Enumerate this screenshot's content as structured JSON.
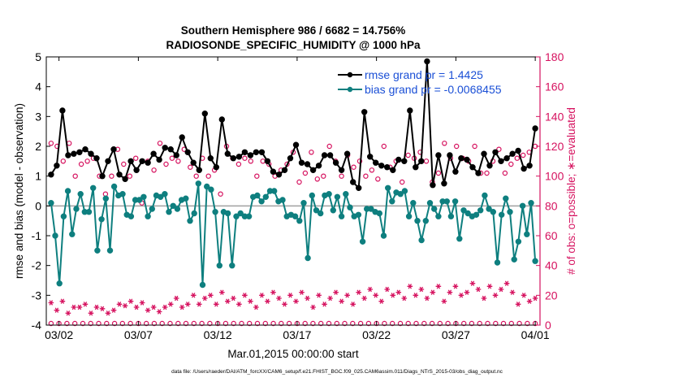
{
  "chart_data": {
    "type": "line",
    "title": "Southern Hemisphere 986 / 6682 = 14.756%",
    "subtitle": "RADIOSONDE_SPECIFIC_HUMIDITY @ 1000 hPa",
    "xlabel": "Mar.01,2015 00:00:00 start",
    "ylabel": "rmse and bias (model - observation)",
    "y2label": "# of obs: o=possible; ∗=evaluated",
    "footer": "data file: /Users/raeder/DAI/ATM_forcXX/CAM6_setup/f.e21.FHIST_BGC.f09_025.CAM6assim.011/Diags_NTrS_2015-03/obs_diag_output.nc",
    "xlim": [
      0.2,
      31.3
    ],
    "ylim": [
      -4,
      5
    ],
    "y2lim": [
      0,
      180
    ],
    "xticks": [
      1,
      6,
      11,
      16,
      21,
      26,
      31
    ],
    "xtick_labels": [
      "03/02",
      "03/07",
      "03/12",
      "03/17",
      "03/22",
      "03/27",
      "04/01"
    ],
    "yticks": [
      -4,
      -3,
      -2,
      -1,
      0,
      1,
      2,
      3,
      4,
      5
    ],
    "y2ticks": [
      0,
      20,
      40,
      60,
      80,
      100,
      120,
      140,
      160,
      180
    ],
    "legend_location": "top-right",
    "colors": {
      "rmse": "#000000",
      "bias": "#0e7f7f",
      "obs": "#d6125f",
      "zero_line": "#a0a0a0"
    },
    "series": [
      {
        "name": "rmse",
        "legend_label": "rmse grand pr = 1.4425",
        "values": [
          1.05,
          1.35,
          3.2,
          1.7,
          1.75,
          1.8,
          1.9,
          1.75,
          1.6,
          1.0,
          1.5,
          1.9,
          1.05,
          0.9,
          1.5,
          1.2,
          1.5,
          1.45,
          1.75,
          1.55,
          1.95,
          1.9,
          1.7,
          2.3,
          1.8,
          1.45,
          1.2,
          3.1,
          1.6,
          1.3,
          2.9,
          1.75,
          1.6,
          1.65,
          1.8,
          1.7,
          1.8,
          1.8,
          1.5,
          1.15,
          1.05,
          1.2,
          1.6,
          2.05,
          1.45,
          1.4,
          1.2,
          1.35,
          1.7,
          1.7,
          1.45,
          1.2,
          1.75,
          0.8,
          0.6,
          3.15,
          1.65,
          1.45,
          1.35,
          1.3,
          1.2,
          1.55,
          1.5,
          3.2,
          1.3,
          1.5,
          4.85,
          0.7,
          1.7,
          0.75,
          1.7,
          1.15,
          1.6,
          1.55,
          1.3,
          1.1,
          1.75,
          1.35,
          1.8,
          1.5,
          1.6,
          1.75,
          1.85,
          1.25,
          1.35,
          2.6
        ]
      },
      {
        "name": "bias",
        "legend_label": "bias grand pr = -0.0068455",
        "values": [
          0.1,
          -1.0,
          -2.6,
          -0.35,
          0.5,
          -0.95,
          -0.1,
          0.4,
          -0.2,
          -0.2,
          0.6,
          -1.5,
          -0.45,
          0.25,
          -1.5,
          0.65,
          0.35,
          0.4,
          -0.3,
          -0.35,
          0.2,
          0.2,
          0.3,
          -0.35,
          -0.1,
          0.35,
          0.3,
          0.4,
          -0.2,
          0.0,
          -0.1,
          0.2,
          0.25,
          -0.5,
          -0.25,
          0.75,
          -2.65,
          0.65,
          0.55,
          -0.2,
          -2.0,
          -0.2,
          -0.25,
          -2.0,
          -0.35,
          -0.25,
          -0.35,
          -0.35,
          0.3,
          0.35,
          0.15,
          0.3,
          0.5,
          0.5,
          0.15,
          0.2,
          -0.35,
          -0.3,
          -0.35,
          -0.5,
          0.1,
          -1.75,
          0.35,
          -0.15,
          -0.25,
          0.35,
          0.4,
          -0.15,
          0.3,
          -0.35,
          0.4,
          -0.05,
          -0.35,
          -0.3,
          -1.2,
          -0.1,
          -0.1,
          -0.2,
          -0.25,
          -1.0,
          0.6,
          0.15,
          0.45,
          0.4,
          0.5,
          -0.35,
          0.1,
          -0.5,
          -1.15,
          -0.5,
          0.1,
          -0.1,
          -0.35,
          0.15,
          0.15,
          -0.35,
          0.15,
          -1.1,
          -0.15,
          -0.25,
          -0.35,
          -0.3,
          -0.15,
          0.35,
          -0.1,
          -0.2,
          -1.9,
          -0.3,
          0.25,
          -0.2,
          -1.8,
          -1.2,
          0.0,
          -0.95,
          0.1,
          -1.85
        ]
      },
      {
        "name": "possible",
        "legend_label": "",
        "values": [
          122,
          120,
          110,
          122,
          100,
          108,
          110,
          112,
          100,
          88,
          100,
          118,
          108,
          100,
          112,
          82,
          110,
          104,
          122,
          108,
          112,
          110,
          118,
          106,
          100,
          112,
          100,
          104,
          88,
          120,
          112,
          108,
          112,
          110,
          100,
          110,
          108,
          100,
          104,
          108,
          116,
          96,
          102,
          116,
          98,
          100,
          120,
          110,
          100,
          114,
          106,
          110,
          100,
          104,
          98,
          120,
          106,
          110,
          96,
          114,
          112,
          116,
          110,
          96,
          102,
          122,
          112,
          120,
          112,
          110,
          120,
          102,
          102,
          110,
          118,
          102,
          108,
          112,
          114,
          116,
          120
        ]
      },
      {
        "name": "evaluated",
        "legend_label": "",
        "values": [
          15,
          10,
          16,
          8,
          12,
          12,
          14,
          8,
          12,
          11,
          8,
          10,
          14,
          13,
          16,
          12,
          15,
          10,
          12,
          9,
          12,
          14,
          18,
          12,
          14,
          20,
          14,
          18,
          20,
          14,
          22,
          16,
          18,
          14,
          20,
          16,
          12,
          20,
          16,
          22,
          18,
          14,
          20,
          16,
          22,
          18,
          12,
          20,
          14,
          18,
          22,
          16,
          20,
          14,
          22,
          18,
          24,
          20,
          16,
          24,
          20,
          22,
          18,
          26,
          20,
          24,
          18,
          22,
          26,
          16,
          22,
          26,
          20,
          22,
          28,
          24,
          18,
          26,
          20,
          24,
          28,
          22,
          14,
          20,
          16,
          18
        ]
      }
    ]
  }
}
